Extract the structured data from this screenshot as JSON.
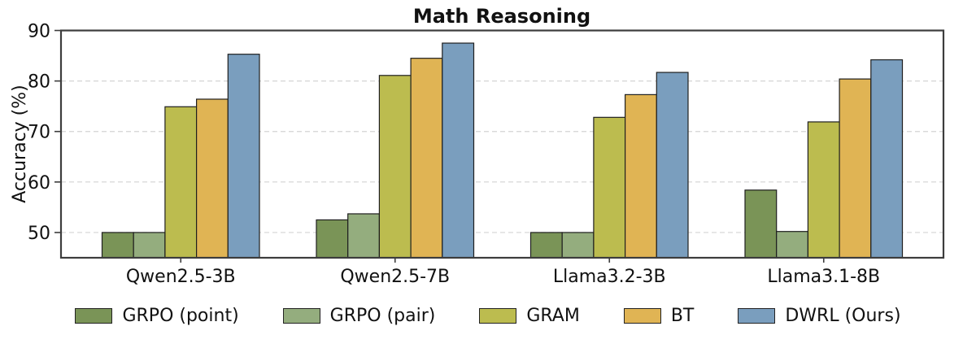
{
  "chart_data": {
    "type": "bar",
    "title": "Math Reasoning",
    "xlabel": "",
    "ylabel": "Accuracy (%)",
    "ylim": [
      45,
      90
    ],
    "yticks": [
      50,
      60,
      70,
      80,
      90
    ],
    "grid": "horizontal dashed",
    "legend_position": "below",
    "categories": [
      "Qwen2.5-3B",
      "Qwen2.5-7B",
      "Llama3.2-3B",
      "Llama3.1-8B"
    ],
    "series": [
      {
        "name": "GRPO (point)",
        "color": "#7a9457",
        "values": [
          50.0,
          52.5,
          50.0,
          58.4
        ]
      },
      {
        "name": "GRPO (pair)",
        "color": "#94ad7e",
        "values": [
          50.0,
          53.7,
          50.0,
          50.2
        ]
      },
      {
        "name": "GRAM",
        "color": "#bcbc4f",
        "values": [
          74.9,
          81.1,
          72.8,
          71.9
        ]
      },
      {
        "name": "BT",
        "color": "#e0b454",
        "values": [
          76.4,
          84.5,
          77.3,
          80.4
        ]
      },
      {
        "name": "DWRL (Ours)",
        "color": "#7a9ebe",
        "values": [
          85.3,
          87.5,
          81.7,
          84.2
        ]
      }
    ],
    "colors": {
      "bar_edge": "#1f1f1f",
      "gridline": "#d4d4d4",
      "spine": "#3d3d3d",
      "text": "#111111",
      "background": "#ffffff"
    }
  }
}
